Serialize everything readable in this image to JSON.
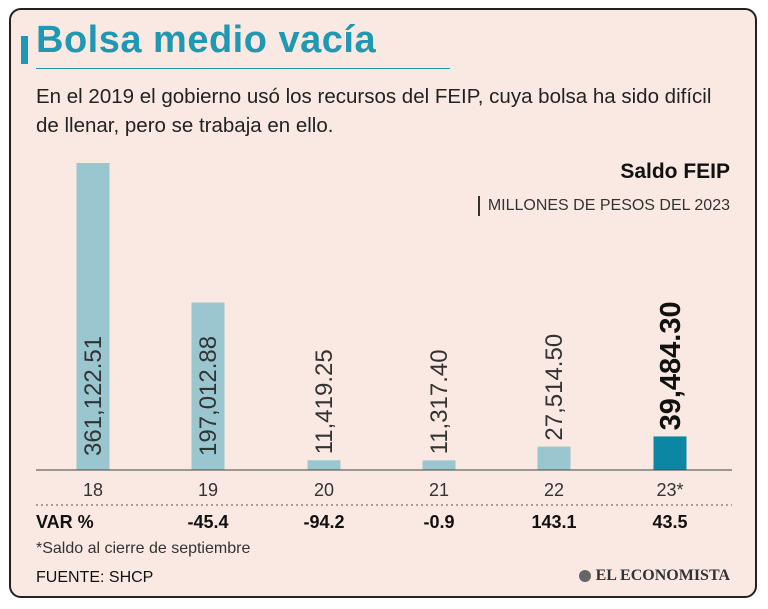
{
  "title": "Bolsa medio vacía",
  "subtitle": "En el 2019 el gobierno usó los recursos del FEIP, cuya bolsa ha sido difícil de llenar, pero se trabaja en ello.",
  "chart_data": {
    "type": "bar",
    "title": "Saldo FEIP",
    "units": "MILLONES DE PESOS DEL 2023",
    "categories": [
      "18",
      "19",
      "20",
      "21",
      "22",
      "23*"
    ],
    "values": [
      361122.51,
      197012.88,
      11419.25,
      11317.4,
      27514.5,
      39484.3
    ],
    "value_labels": [
      "361,122.51",
      "197,012.88",
      "11,419.25",
      "11,317.40",
      "27,514.50",
      "39,484.30"
    ],
    "highlight_index": 5,
    "ylim": [
      0,
      361122.51
    ],
    "var_label": "VAR %",
    "var_values": [
      "",
      "-45.4",
      "-94.2",
      "-0.9",
      "143.1",
      "43.5"
    ]
  },
  "footnote": "*Saldo al cierre de septiembre",
  "source": "FUENTE: SHCP",
  "brand": "EL ECONOMISTA",
  "colors": {
    "accent": "#1f98b4",
    "bar": "#9ac6cf",
    "bar_highlight": "#0b86a3",
    "background": "#f9e9e2"
  }
}
